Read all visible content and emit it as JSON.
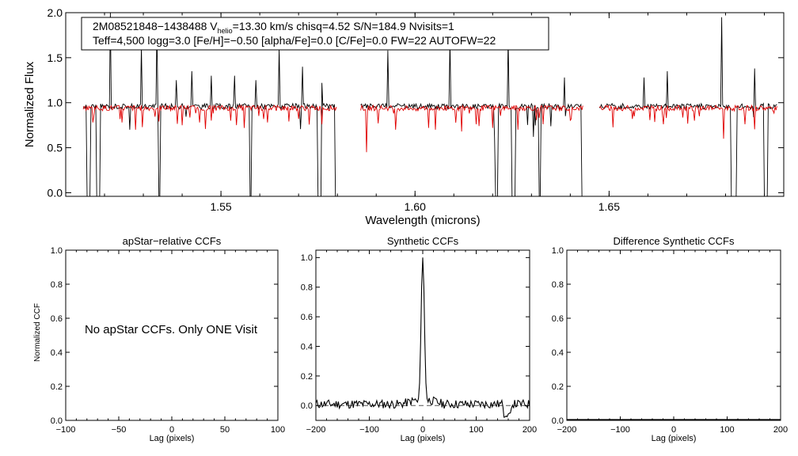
{
  "chart_data": [
    {
      "type": "line",
      "ylabel": "Normalized Flux",
      "xlabel": "Wavelength (microns)",
      "xlim": [
        1.51,
        1.695
      ],
      "ylim": [
        -0.04,
        2.0
      ],
      "xticks": [
        "1.55",
        "1.60",
        "1.65"
      ],
      "yticks": [
        "0.0",
        "0.5",
        "1.0",
        "1.5",
        "2.0"
      ],
      "annotation": {
        "line1_prefix": "2M08521848−1438488  V",
        "line1_sub": "helio",
        "line1_suffix": "=13.30 km/s  chisq=4.52  S/N=184.9  Nvisits=1",
        "line2": "Teff=4,500 logg=3.0 [Fe/H]=−0.50 [alpha/Fe]=0.0 [C/Fe]=0.0 FW=22 AUTOFW=22"
      },
      "chips": [
        [
          1.5145,
          1.58
        ],
        [
          1.586,
          1.6435
        ],
        [
          1.6475,
          1.6935
        ]
      ],
      "series": [
        {
          "color": "#000000",
          "baseline": 0.96,
          "emission": [
            [
              1.5215,
              2.0
            ],
            [
              1.5295,
              1.62
            ],
            [
              1.5335,
              1.84
            ],
            [
              1.5385,
              1.25
            ],
            [
              1.5425,
              1.35
            ],
            [
              1.5475,
              1.3
            ],
            [
              1.5535,
              1.3
            ],
            [
              1.559,
              1.25
            ],
            [
              1.565,
              1.6
            ],
            [
              1.571,
              1.4
            ],
            [
              1.576,
              1.22
            ],
            [
              1.593,
              1.58
            ],
            [
              1.609,
              1.7
            ],
            [
              1.624,
              1.72
            ],
            [
              1.632,
              1.58
            ],
            [
              1.6385,
              1.28
            ],
            [
              1.659,
              1.28
            ],
            [
              1.665,
              1.35
            ],
            [
              1.679,
              1.95
            ],
            [
              1.6875,
              1.38
            ]
          ],
          "gaps": [
            [
              1.5155,
              1.5165
            ],
            [
              1.518,
              1.519
            ],
            [
              1.534,
              1.5345
            ],
            [
              1.5575,
              1.558
            ],
            [
              1.575,
              1.576
            ],
            [
              1.5795,
              1.58
            ],
            [
              1.6205,
              1.6215
            ],
            [
              1.625,
              1.626
            ],
            [
              1.632,
              1.6325
            ],
            [
              1.643,
              1.6435
            ],
            [
              1.6815,
              1.683
            ],
            [
              1.69,
              1.691
            ]
          ]
        },
        {
          "color": "#e00000",
          "baseline": 0.94,
          "absorption": [
            [
              1.517,
              0.78
            ],
            [
              1.5245,
              0.78
            ],
            [
              1.528,
              0.7
            ],
            [
              1.533,
              0.62
            ],
            [
              1.54,
              0.75
            ],
            [
              1.5445,
              0.78
            ],
            [
              1.5525,
              0.8
            ],
            [
              1.556,
              0.72
            ],
            [
              1.562,
              0.78
            ],
            [
              1.57,
              0.82
            ],
            [
              1.576,
              0.76
            ],
            [
              1.5875,
              0.45
            ],
            [
              1.595,
              0.7
            ],
            [
              1.6035,
              0.72
            ],
            [
              1.612,
              0.68
            ],
            [
              1.62,
              0.72
            ],
            [
              1.6265,
              0.7
            ],
            [
              1.633,
              0.76
            ],
            [
              1.64,
              0.8
            ],
            [
              1.656,
              0.82
            ],
            [
              1.664,
              0.76
            ],
            [
              1.672,
              0.8
            ],
            [
              1.6795,
              0.6
            ],
            [
              1.685,
              0.76
            ]
          ]
        }
      ]
    },
    {
      "type": "line",
      "title": "apStar−relative CCFs",
      "ylabel": "Normalized CCF",
      "xlabel": "Lag (pixels)",
      "xlim": [
        -100,
        100
      ],
      "ylim": [
        0.0,
        1.0
      ],
      "xticks": [
        "−100",
        "−50",
        "0",
        "50",
        "100"
      ],
      "yticks": [
        "0.0",
        "0.2",
        "0.4",
        "0.6",
        "0.8",
        "1.0"
      ],
      "note": "No apStar CCFs.  Only ONE Visit"
    },
    {
      "type": "line",
      "title": "Synthetic CCFs",
      "xlabel": "Lag (pixels)",
      "xlim": [
        -200,
        200
      ],
      "ylim": [
        -0.1,
        1.05
      ],
      "xticks": [
        "−200",
        "−100",
        "0",
        "100",
        "200"
      ],
      "yticks": [
        "0.0",
        "0.2",
        "0.4",
        "0.6",
        "0.8",
        "1.0"
      ],
      "series": [
        {
          "color": "#000000",
          "peak": {
            "x": 0,
            "y": 1.0
          }
        }
      ],
      "reference_line": {
        "y": 0.0,
        "style": "dashed"
      }
    },
    {
      "type": "line",
      "title": "Difference Synthetic CCFs",
      "xlabel": "Lag (pixels)",
      "xlim": [
        -200,
        200
      ],
      "ylim": [
        0.0,
        1.0
      ],
      "xticks": [
        "−200",
        "−100",
        "0",
        "100",
        "200"
      ],
      "yticks": [
        "0.0",
        "0.2",
        "0.4",
        "0.6",
        "0.8",
        "1.0"
      ],
      "series": [
        {
          "color": "#000000",
          "constant": 0.0
        }
      ]
    }
  ]
}
